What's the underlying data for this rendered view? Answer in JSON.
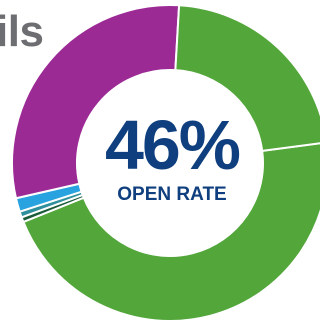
{
  "header": {
    "title_fragment": "ils"
  },
  "center": {
    "value": "46%",
    "label": "OPEN RATE"
  },
  "chart_data": {
    "type": "pie",
    "variant": "donut",
    "title": "",
    "slices": [
      {
        "value": 46,
        "color": "#52a63a"
      },
      {
        "value": 0.5,
        "color": "#1b5c3a"
      },
      {
        "value": 0.6,
        "color": "#2f8f9c"
      },
      {
        "value": 1.4,
        "color": "#29a3e0"
      },
      {
        "value": 29.5,
        "color": "#9c2a95"
      },
      {
        "value": 22,
        "color": "#52a63a"
      }
    ]
  }
}
